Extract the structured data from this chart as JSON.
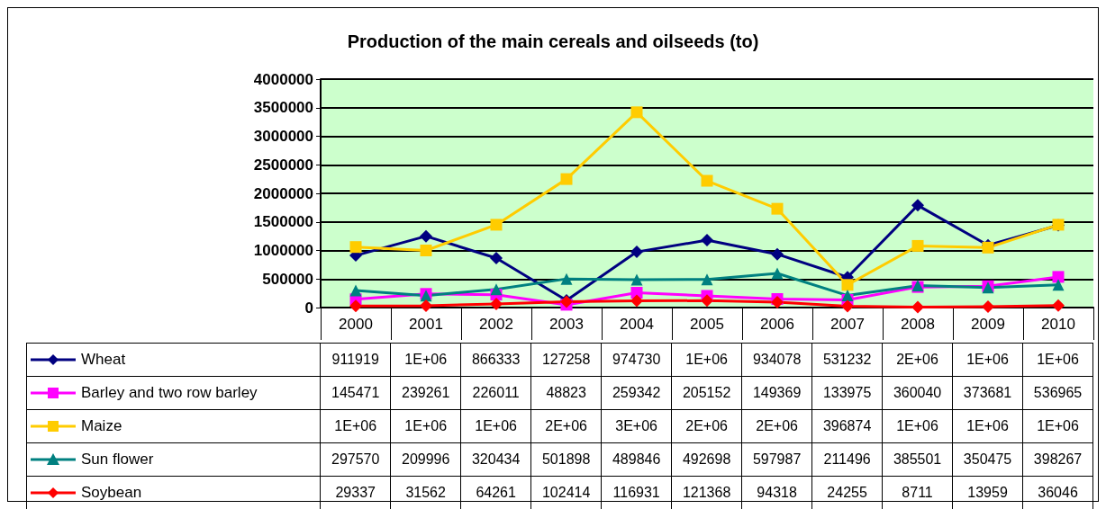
{
  "chart_data": {
    "type": "line",
    "title": "Production of the main cereals and oilseeds (to)",
    "categories": [
      "2000",
      "2001",
      "2002",
      "2003",
      "2004",
      "2005",
      "2006",
      "2007",
      "2008",
      "2009",
      "2010"
    ],
    "ylim": [
      0,
      4000000
    ],
    "yticks": [
      0,
      500000,
      1000000,
      1500000,
      2000000,
      2500000,
      3000000,
      3500000,
      4000000
    ],
    "grid": "y",
    "legend": "bottom left",
    "series": [
      {
        "name": "Wheat",
        "color": "#000080",
        "marker": "diamond",
        "values": [
          911919,
          1250000,
          866333,
          127258,
          974730,
          1180000,
          934078,
          531232,
          1790000,
          1090000,
          1440000
        ],
        "value_labels": [
          "911919",
          "1E+06",
          "866333",
          "127258",
          "974730",
          "1E+06",
          "934078",
          "531232",
          "2E+06",
          "1E+06",
          "1E+06"
        ]
      },
      {
        "name": "Barley and two row barley",
        "color": "#ff00ff",
        "marker": "square",
        "values": [
          145471,
          239261,
          226011,
          48823,
          259342,
          205152,
          149369,
          133975,
          360040,
          373681,
          536965
        ],
        "value_labels": [
          "145471",
          "239261",
          "226011",
          "48823",
          "259342",
          "205152",
          "149369",
          "133975",
          "360040",
          "373681",
          "536965"
        ]
      },
      {
        "name": "Maize",
        "color": "#ffcc00",
        "marker": "square",
        "values": [
          1060000,
          1000000,
          1450000,
          2250000,
          3420000,
          2220000,
          1730000,
          396874,
          1080000,
          1050000,
          1450000
        ],
        "value_labels": [
          "1E+06",
          "1E+06",
          "1E+06",
          "2E+06",
          "3E+06",
          "2E+06",
          "2E+06",
          "396874",
          "1E+06",
          "1E+06",
          "1E+06"
        ]
      },
      {
        "name": "Sun flower",
        "color": "#008080",
        "marker": "triangle",
        "values": [
          297570,
          209996,
          320434,
          501898,
          489846,
          492698,
          597987,
          211496,
          385501,
          350475,
          398267
        ],
        "value_labels": [
          "297570",
          "209996",
          "320434",
          "501898",
          "489846",
          "492698",
          "597987",
          "211496",
          "385501",
          "350475",
          "398267"
        ]
      },
      {
        "name": "Soybean",
        "color": "#ff0000",
        "marker": "diamond",
        "values": [
          29337,
          31562,
          64261,
          102414,
          116931,
          121368,
          94318,
          24255,
          8711,
          13959,
          36046
        ],
        "value_labels": [
          "29337",
          "31562",
          "64261",
          "102414",
          "116931",
          "121368",
          "94318",
          "24255",
          "8711",
          "13959",
          "36046"
        ]
      }
    ]
  }
}
